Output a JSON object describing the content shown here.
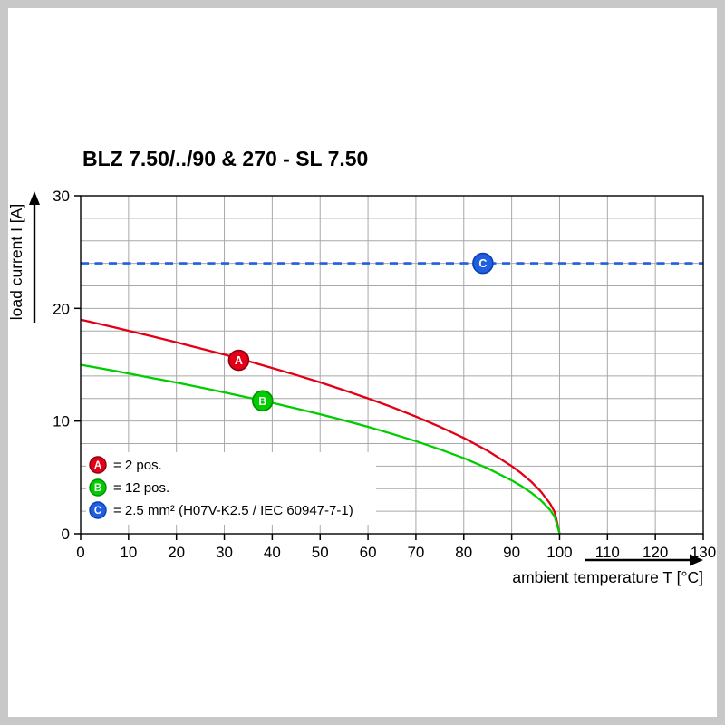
{
  "page": {
    "title": "BLZ 7.50/../90 & 270 - SL 7.50"
  },
  "chart_data": {
    "type": "line",
    "title": "BLZ 7.50/../90 & 270 - SL 7.50",
    "xlabel": "ambient temperature T [°C]",
    "ylabel": "load current I [A]",
    "xlim": [
      0,
      130
    ],
    "ylim": [
      0,
      30
    ],
    "x_ticks": [
      0,
      10,
      20,
      30,
      40,
      50,
      60,
      70,
      80,
      90,
      100,
      110,
      120,
      130
    ],
    "y_ticks": [
      0,
      10,
      20,
      30
    ],
    "grid": {
      "x_step": 10,
      "y_step": 2,
      "color": "#a8a8a8"
    },
    "legend_position": "bottom-left-inside",
    "series": [
      {
        "name": "A",
        "legend_label": "= 2 pos.",
        "color": "#e30016",
        "marker_stroke": "#8f0010",
        "style": "solid",
        "marker_at": [
          33,
          15.4
        ],
        "points": [
          [
            0,
            19
          ],
          [
            5,
            18.52
          ],
          [
            10,
            18.02
          ],
          [
            15,
            17.51
          ],
          [
            20,
            16.99
          ],
          [
            25,
            16.45
          ],
          [
            30,
            15.9
          ],
          [
            35,
            15.32
          ],
          [
            40,
            14.71
          ],
          [
            45,
            14.09
          ],
          [
            50,
            13.44
          ],
          [
            55,
            12.74
          ],
          [
            60,
            12.02
          ],
          [
            65,
            11.24
          ],
          [
            70,
            10.4
          ],
          [
            75,
            9.5
          ],
          [
            80,
            8.5
          ],
          [
            85,
            7.36
          ],
          [
            90,
            6.01
          ],
          [
            92,
            5.37
          ],
          [
            94,
            4.65
          ],
          [
            96,
            3.8
          ],
          [
            98,
            2.69
          ],
          [
            99,
            1.9
          ],
          [
            100,
            0
          ]
        ]
      },
      {
        "name": "B",
        "legend_label": "= 12 pos.",
        "color": "#00cd00",
        "marker_stroke": "#009000",
        "style": "solid",
        "marker_at": [
          38,
          11.8
        ],
        "points": [
          [
            0,
            15
          ],
          [
            5,
            14.62
          ],
          [
            10,
            14.23
          ],
          [
            15,
            13.82
          ],
          [
            20,
            13.42
          ],
          [
            25,
            12.99
          ],
          [
            30,
            12.55
          ],
          [
            35,
            12.09
          ],
          [
            40,
            11.62
          ],
          [
            45,
            11.12
          ],
          [
            50,
            10.61
          ],
          [
            55,
            10.06
          ],
          [
            60,
            9.49
          ],
          [
            65,
            8.87
          ],
          [
            70,
            8.22
          ],
          [
            75,
            7.5
          ],
          [
            80,
            6.71
          ],
          [
            85,
            5.81
          ],
          [
            90,
            4.74
          ],
          [
            92,
            4.24
          ],
          [
            94,
            3.67
          ],
          [
            96,
            3
          ],
          [
            98,
            2.12
          ],
          [
            99,
            1.5
          ],
          [
            100,
            0
          ]
        ]
      },
      {
        "name": "C",
        "legend_label": "= 2.5 mm² (H07V-K2.5 / IEC 60947-7-1)",
        "color": "#1f5fe0",
        "marker_stroke": "#0a3fb0",
        "style": "dashed",
        "marker_at": [
          84,
          24
        ],
        "points": [
          [
            0,
            24
          ],
          [
            130,
            24
          ]
        ]
      }
    ]
  }
}
